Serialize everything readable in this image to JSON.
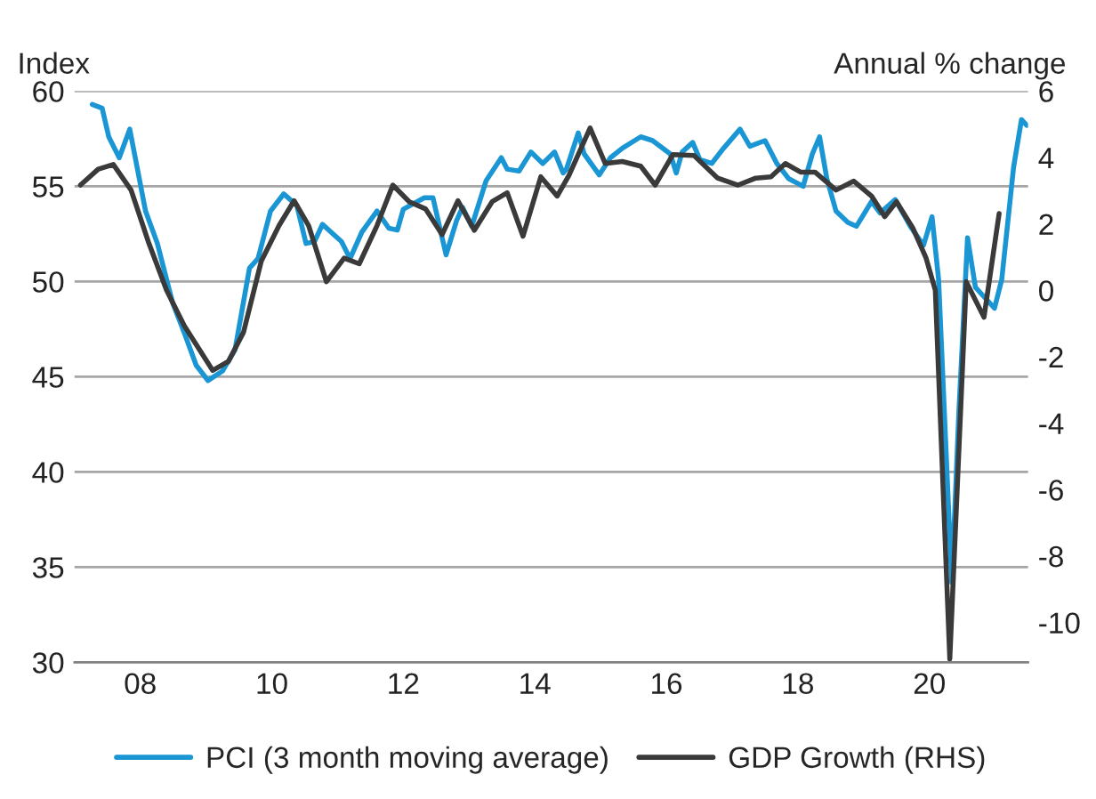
{
  "chart_data": {
    "type": "line",
    "ylabel": "Index",
    "y2label": "Annual % change",
    "xlim": [
      2007,
      2021.5
    ],
    "xticks": [
      {
        "value": 2008,
        "label": "08"
      },
      {
        "value": 2010,
        "label": "10"
      },
      {
        "value": 2012,
        "label": "12"
      },
      {
        "value": 2014,
        "label": "14"
      },
      {
        "value": 2016,
        "label": "16"
      },
      {
        "value": 2018,
        "label": "18"
      },
      {
        "value": 2020,
        "label": "20"
      }
    ],
    "ylim": [
      30,
      60
    ],
    "yticks": [
      30,
      35,
      40,
      45,
      50,
      55,
      60
    ],
    "y2lim": [
      -11.2,
      6
    ],
    "y2ticks": [
      -10,
      -8,
      -6,
      -4,
      -2,
      0,
      2,
      4,
      6
    ],
    "grid": "y",
    "legend": "bottom",
    "series": [
      {
        "name": "PCI (3 month moving average)",
        "color": "#1a96d4",
        "x": [
          2007.27,
          2007.42,
          2007.52,
          2007.68,
          2007.84,
          2008.08,
          2008.26,
          2008.49,
          2008.67,
          2008.85,
          2009.03,
          2009.25,
          2009.44,
          2009.66,
          2009.79,
          2009.98,
          2010.18,
          2010.38,
          2010.52,
          2010.65,
          2010.77,
          2011.06,
          2011.19,
          2011.37,
          2011.6,
          2011.78,
          2011.91,
          2012.0,
          2012.32,
          2012.45,
          2012.65,
          2012.81,
          2012.9,
          2013.04,
          2013.26,
          2013.49,
          2013.58,
          2013.76,
          2013.94,
          2014.12,
          2014.3,
          2014.43,
          2014.48,
          2014.66,
          2014.75,
          2014.98,
          2015.15,
          2015.33,
          2015.61,
          2015.79,
          2016.06,
          2016.15,
          2016.24,
          2016.4,
          2016.51,
          2016.69,
          2016.87,
          2017.12,
          2017.27,
          2017.5,
          2017.68,
          2017.86,
          2018.08,
          2018.22,
          2018.33,
          2018.44,
          2018.58,
          2018.76,
          2018.89,
          2019.12,
          2019.25,
          2019.48,
          2019.71,
          2019.91,
          2020.04,
          2020.14,
          2020.34,
          2020.45,
          2020.58,
          2020.7,
          2020.83,
          2020.99,
          2021.1,
          2021.28,
          2021.4,
          2021.48
        ],
        "values": [
          59.3,
          59.1,
          57.6,
          56.5,
          58.0,
          53.7,
          52.0,
          48.9,
          47.3,
          45.6,
          44.8,
          45.3,
          46.4,
          50.7,
          51.2,
          53.7,
          54.6,
          54.0,
          52.0,
          52.1,
          53.0,
          52.1,
          51.2,
          52.6,
          53.7,
          52.8,
          52.7,
          53.8,
          54.4,
          54.4,
          51.4,
          53.2,
          53.9,
          52.9,
          55.3,
          56.5,
          55.9,
          55.8,
          56.8,
          56.2,
          56.8,
          55.7,
          55.9,
          57.8,
          56.7,
          55.6,
          56.5,
          57.0,
          57.6,
          57.4,
          56.7,
          55.7,
          56.8,
          57.3,
          56.4,
          56.2,
          57.0,
          58.0,
          57.1,
          57.4,
          56.2,
          55.4,
          55.0,
          56.7,
          57.6,
          55.4,
          53.7,
          53.1,
          52.9,
          54.2,
          53.6,
          54.3,
          52.9,
          51.9,
          53.4,
          50.1,
          34.2,
          43.3,
          52.3,
          49.7,
          49.2,
          48.6,
          50.1,
          56.0,
          58.5,
          58.2
        ]
      },
      {
        "name": "GDP Growth (RHS)",
        "color": "#3a3a3a",
        "axis": "y2",
        "x": [
          2007.09,
          2007.36,
          2007.59,
          2007.86,
          2008.13,
          2008.4,
          2008.67,
          2009.1,
          2009.34,
          2009.57,
          2009.84,
          2010.11,
          2010.34,
          2010.56,
          2010.83,
          2011.1,
          2011.33,
          2011.6,
          2011.84,
          2012.09,
          2012.34,
          2012.59,
          2012.83,
          2013.08,
          2013.35,
          2013.58,
          2013.82,
          2014.09,
          2014.34,
          2014.52,
          2014.84,
          2015.07,
          2015.33,
          2015.61,
          2015.83,
          2016.1,
          2016.42,
          2016.78,
          2017.09,
          2017.36,
          2017.59,
          2017.81,
          2018.04,
          2018.26,
          2018.58,
          2018.85,
          2019.12,
          2019.32,
          2019.5,
          2019.75,
          2019.95,
          2020.09,
          2020.31,
          2020.56,
          2020.83,
          2021.06
        ],
        "values": [
          3.17,
          3.65,
          3.79,
          3.02,
          1.42,
          0.0,
          -1.07,
          -2.41,
          -2.14,
          -1.26,
          0.88,
          1.95,
          2.7,
          1.95,
          0.26,
          0.97,
          0.8,
          1.95,
          3.17,
          2.67,
          2.45,
          1.68,
          2.7,
          1.81,
          2.67,
          2.94,
          1.63,
          3.42,
          2.84,
          3.47,
          4.89,
          3.82,
          3.88,
          3.74,
          3.17,
          4.09,
          4.06,
          3.38,
          3.17,
          3.38,
          3.42,
          3.82,
          3.56,
          3.56,
          3.02,
          3.29,
          2.84,
          2.22,
          2.67,
          1.87,
          0.97,
          0.0,
          -11.1,
          0.26,
          -0.81,
          2.31
        ]
      }
    ]
  }
}
